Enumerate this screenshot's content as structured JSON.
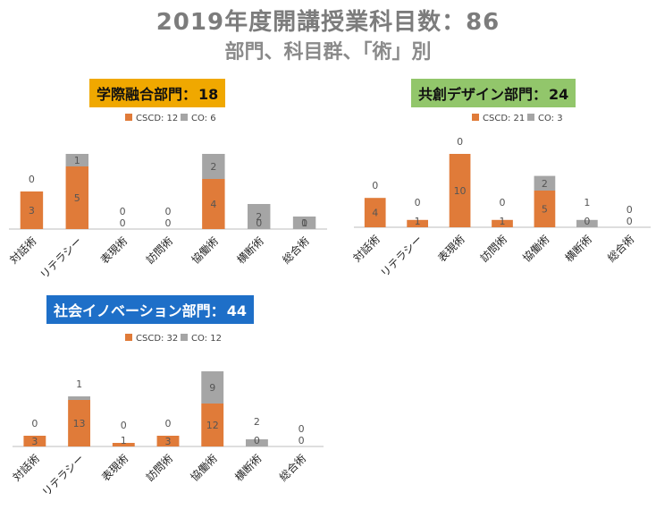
{
  "header": {
    "title": "2019年度開講授業科目数：86",
    "subtitle": "部門、科目群、「術」別"
  },
  "colors": {
    "csd": "#e07b39",
    "co": "#a5a5a5"
  },
  "chart_data": [
    {
      "type": "bar",
      "stacked": true,
      "title": "学際融合部門：18",
      "title_name": "学際融合部門：",
      "title_count": "18",
      "categories": [
        "対話術",
        "リテラシー",
        "表現術",
        "訪問術",
        "協働術",
        "横断術",
        "総合術"
      ],
      "series": [
        {
          "name": "CSCD: 12",
          "values": [
            3,
            5,
            0,
            0,
            4,
            0,
            0
          ]
        },
        {
          "name": "CO: 6",
          "values": [
            0,
            1,
            0,
            0,
            2,
            2,
            1
          ]
        }
      ]
    },
    {
      "type": "bar",
      "stacked": true,
      "title": "共創デザイン部門：24",
      "title_name": "共創デザイン部門：",
      "title_count": "24",
      "categories": [
        "対話術",
        "リテラシー",
        "表現術",
        "訪問術",
        "協働術",
        "横断術",
        "総合術"
      ],
      "series": [
        {
          "name": "CSCD: 21",
          "values": [
            4,
            1,
            10,
            1,
            5,
            0,
            0
          ]
        },
        {
          "name": "CO: 3",
          "values": [
            0,
            0,
            0,
            0,
            2,
            1,
            0
          ]
        }
      ]
    },
    {
      "type": "bar",
      "stacked": true,
      "title": "社会イノベーション部門：44",
      "title_name": "社会イノベーション部門：",
      "title_count": "44",
      "categories": [
        "対話術",
        "リテラシー",
        "表現術",
        "訪問術",
        "協働術",
        "横断術",
        "総合術"
      ],
      "series": [
        {
          "name": "CSCD: 32",
          "values": [
            3,
            13,
            1,
            3,
            12,
            0,
            0
          ]
        },
        {
          "name": "CO: 12",
          "values": [
            0,
            1,
            0,
            0,
            9,
            2,
            0
          ]
        }
      ]
    }
  ]
}
